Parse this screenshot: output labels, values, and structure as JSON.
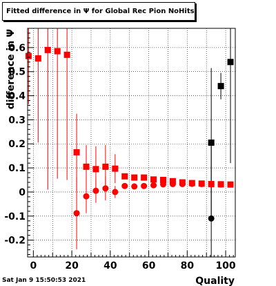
{
  "title": "Fitted difference in  Ψ  for Global Rec Pion NoHits",
  "timestamp": "Sat Jan  9 15:50:53 2021",
  "colors": {
    "red": "#ff0000",
    "black": "#000000"
  },
  "chart_data": {
    "type": "scatter",
    "xlabel": "Quality",
    "ylabel": "difference in Ψ",
    "xlim": [
      -3,
      105
    ],
    "ylim": [
      -0.27,
      0.68
    ],
    "x_ticks": [
      0,
      20,
      40,
      60,
      80,
      100
    ],
    "y_ticks": [
      -0.2,
      -0.1,
      0,
      0.1,
      0.2,
      0.3,
      0.4,
      0.5,
      0.6
    ],
    "grid": true,
    "series": [
      {
        "color": "#ff0000",
        "marker": "square",
        "points": [
          {
            "x": -2.5,
            "y": 0.565,
            "err": 0.2
          },
          {
            "x": 2.5,
            "y": 0.555,
            "err": 0.35
          },
          {
            "x": 7.5,
            "y": 0.59,
            "err": 0.58
          },
          {
            "x": 12.5,
            "y": 0.585,
            "err": 0.53
          },
          {
            "x": 17.5,
            "y": 0.57,
            "err": 0.52
          },
          {
            "x": 22.5,
            "y": 0.165,
            "err": 0.16
          },
          {
            "x": 27.5,
            "y": 0.105,
            "err": 0.09
          },
          {
            "x": 32.5,
            "y": 0.095,
            "err": 0.095
          },
          {
            "x": 37.5,
            "y": 0.105,
            "err": 0.09
          },
          {
            "x": 42.5,
            "y": 0.097,
            "err": 0.06
          },
          {
            "x": 47.5,
            "y": 0.065,
            "err": 0.006
          },
          {
            "x": 52.5,
            "y": 0.06,
            "err": 0.005
          },
          {
            "x": 57.5,
            "y": 0.06,
            "err": 0.005
          },
          {
            "x": 62.5,
            "y": 0.052,
            "err": 0.004
          },
          {
            "x": 67.5,
            "y": 0.05,
            "err": 0.004
          },
          {
            "x": 72.5,
            "y": 0.045,
            "err": 0.004
          },
          {
            "x": 77.5,
            "y": 0.04,
            "err": 0.003
          },
          {
            "x": 82.5,
            "y": 0.037,
            "err": 0.003
          },
          {
            "x": 87.5,
            "y": 0.035,
            "err": 0.003
          },
          {
            "x": 92.5,
            "y": 0.033,
            "err": 0.003
          },
          {
            "x": 97.5,
            "y": 0.032,
            "err": 0.003
          },
          {
            "x": 102.5,
            "y": 0.031,
            "err": 0.003
          }
        ]
      },
      {
        "color": "#ff0000",
        "marker": "circle",
        "points": [
          {
            "x": 22.5,
            "y": -0.088,
            "err": 0.15
          },
          {
            "x": 27.5,
            "y": -0.018,
            "err": 0.07
          },
          {
            "x": 32.5,
            "y": 0.005,
            "err": 0.05
          },
          {
            "x": 37.5,
            "y": 0.015,
            "err": 0.05
          },
          {
            "x": 42.5,
            "y": 0.0,
            "err": 0.025
          },
          {
            "x": 47.5,
            "y": 0.025,
            "err": 0.005
          },
          {
            "x": 52.5,
            "y": 0.023,
            "err": 0.004
          },
          {
            "x": 57.5,
            "y": 0.025,
            "err": 0.004
          },
          {
            "x": 62.5,
            "y": 0.028,
            "err": 0.004
          },
          {
            "x": 67.5,
            "y": 0.032,
            "err": 0.003
          },
          {
            "x": 72.5,
            "y": 0.033,
            "err": 0.003
          },
          {
            "x": 77.5,
            "y": 0.033,
            "err": 0.003
          },
          {
            "x": 82.5,
            "y": 0.034,
            "err": 0.003
          },
          {
            "x": 87.5,
            "y": 0.033,
            "err": 0.003
          },
          {
            "x": 92.5,
            "y": 0.032,
            "err": 0.003
          },
          {
            "x": 97.5,
            "y": 0.031,
            "err": 0.003
          },
          {
            "x": 102.5,
            "y": 0.031,
            "err": 0.003
          }
        ]
      },
      {
        "color": "#000000",
        "marker": "square",
        "points": [
          {
            "x": 92.5,
            "y": 0.205,
            "err": 0.31
          },
          {
            "x": 97.5,
            "y": 0.44,
            "err": 0.055
          },
          {
            "x": 102.5,
            "y": 0.54,
            "err": 0.42
          }
        ]
      },
      {
        "color": "#000000",
        "marker": "circle",
        "points": [
          {
            "x": 92.5,
            "y": -0.11,
            "err": 0.31
          }
        ]
      }
    ]
  }
}
